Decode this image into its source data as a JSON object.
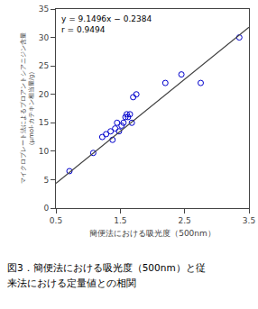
{
  "chart_data": {
    "type": "scatter",
    "xlabel": "簡便法における吸光度（500nm）",
    "ylabel": [
      "マイクロプレート法によるプロアントシアニジン含量",
      "（μmol-カテキン相当量/g）"
    ],
    "annotations": [
      "y = 9.1496x − 0.2384",
      "r = 0.9494"
    ],
    "caption": [
      "図3．簡便法における吸光度（500nm）と従",
      "来法における定量値との相関"
    ],
    "series": [
      {
        "type": "scatter",
        "marker": "open circle",
        "color": "#0000cc",
        "x": [
          0.71,
          1.08,
          1.22,
          1.28,
          1.35,
          1.38,
          1.42,
          1.45,
          1.48,
          1.52,
          1.55,
          1.58,
          1.6,
          1.62,
          1.65,
          1.68,
          1.7,
          1.75,
          2.2,
          2.45,
          2.75,
          3.35
        ],
        "values": [
          6.5,
          9.7,
          12.5,
          13.0,
          13.5,
          12.0,
          14.0,
          15.0,
          13.5,
          14.5,
          15.0,
          16.0,
          16.5,
          16.0,
          16.5,
          15.0,
          19.5,
          20.0,
          22.0,
          23.5,
          22.0,
          30.0
        ]
      },
      {
        "type": "line",
        "line_style": "solid",
        "color": "#404040",
        "x": [
          0.5,
          3.5
        ],
        "values": [
          4.3364,
          31.7852
        ]
      }
    ],
    "xlim": [
      0.5,
      3.5
    ],
    "xticks": [
      0.5,
      1.5,
      2.5,
      3.5
    ],
    "ylim": [
      0,
      35
    ],
    "yticks": [
      0,
      5,
      10,
      15,
      20,
      25,
      30,
      35
    ],
    "grid": false
  }
}
